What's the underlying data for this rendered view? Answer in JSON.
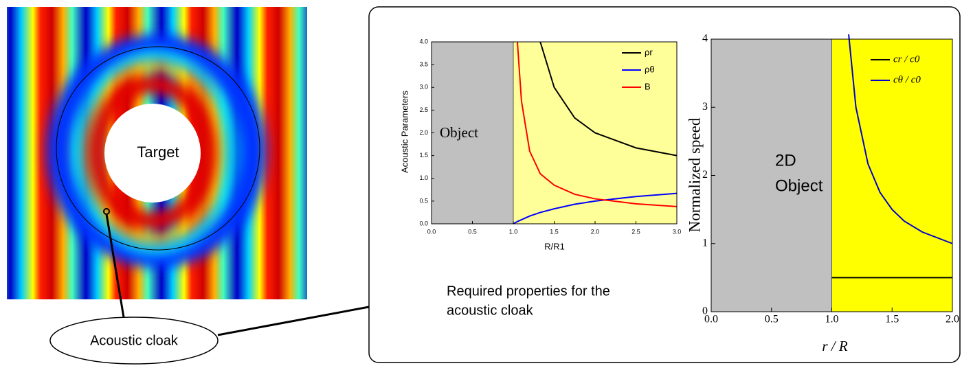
{
  "field_labels": {
    "target": "Target",
    "cloak": "Acoustic cloak"
  },
  "caption": [
    "Required properties for the",
    "acoustic cloak"
  ],
  "chart_data": [
    {
      "type": "line",
      "ylabel": "Acoustic Parameters",
      "xlabel": "R/R1",
      "annotation": [
        "Object"
      ],
      "regions": [
        {
          "from": 0,
          "to": 1,
          "color": "#c0c0c0"
        },
        {
          "from": 1,
          "to": 3,
          "color": "#ffff99"
        }
      ],
      "xlim": [
        0,
        3
      ],
      "ylim": [
        0,
        4
      ],
      "xticks": [
        {
          "value": 0,
          "label": "0.0"
        },
        0.5,
        {
          "value": 1,
          "label": "1.0"
        },
        1.5,
        {
          "value": 2,
          "label": "2.0"
        },
        2.5,
        {
          "value": 3,
          "label": "3.0"
        }
      ],
      "yticks": [
        {
          "value": 0,
          "label": "0.0"
        },
        0.5,
        {
          "value": 1,
          "label": "1.0"
        },
        1.5,
        {
          "value": 2,
          "label": "2.0"
        },
        2.5,
        {
          "value": 3,
          "label": "3.0"
        },
        3.5,
        {
          "value": 4,
          "label": "4.0"
        }
      ],
      "x": [
        1.0,
        1.05,
        1.1,
        1.2,
        1.33,
        1.5,
        1.75,
        2.0,
        2.5,
        3.0
      ],
      "series": [
        {
          "name": "ρr",
          "color": "#000000",
          "values": [
            null,
            null,
            null,
            null,
            4.0,
            3.0,
            2.33,
            2.0,
            1.67,
            1.5
          ]
        },
        {
          "name": "ρθ",
          "color": "#0000ff",
          "values": [
            0,
            0.05,
            0.09,
            0.17,
            0.25,
            0.33,
            0.43,
            0.5,
            0.6,
            0.67
          ]
        },
        {
          "name": "B",
          "color": "#ff0000",
          "values": [
            null,
            4.0,
            2.7,
            1.6,
            1.1,
            0.85,
            0.65,
            0.55,
            0.44,
            0.38
          ]
        }
      ]
    },
    {
      "type": "line",
      "ylabel": "Normalized speed",
      "xlabel": "r / R",
      "annotation": [
        "2D",
        "Object"
      ],
      "regions": [
        {
          "from": 0,
          "to": 1,
          "color": "#c0c0c0"
        },
        {
          "from": 1,
          "to": 2,
          "color": "#ffff00"
        }
      ],
      "xlim": [
        0,
        2
      ],
      "ylim": [
        0,
        4
      ],
      "xticks": [
        {
          "value": 0,
          "label": "0.0"
        },
        0.5,
        {
          "value": 1,
          "label": "1.0"
        },
        1.5,
        {
          "value": 2,
          "label": "2.0"
        }
      ],
      "yticks": [
        0,
        1,
        2,
        3,
        4
      ],
      "x": [
        1.0,
        1.14,
        1.2,
        1.3,
        1.4,
        1.5,
        1.6,
        1.75,
        2.0
      ],
      "series": [
        {
          "name": "cr / c0",
          "color": "#000000",
          "values": [
            0.5,
            0.5,
            0.5,
            0.5,
            0.5,
            0.5,
            0.5,
            0.5,
            0.5
          ]
        },
        {
          "name": "cθ / c0",
          "color": "#0000cc",
          "values": [
            null,
            4.07,
            3.0,
            2.17,
            1.75,
            1.5,
            1.33,
            1.17,
            1.0
          ]
        }
      ]
    }
  ]
}
